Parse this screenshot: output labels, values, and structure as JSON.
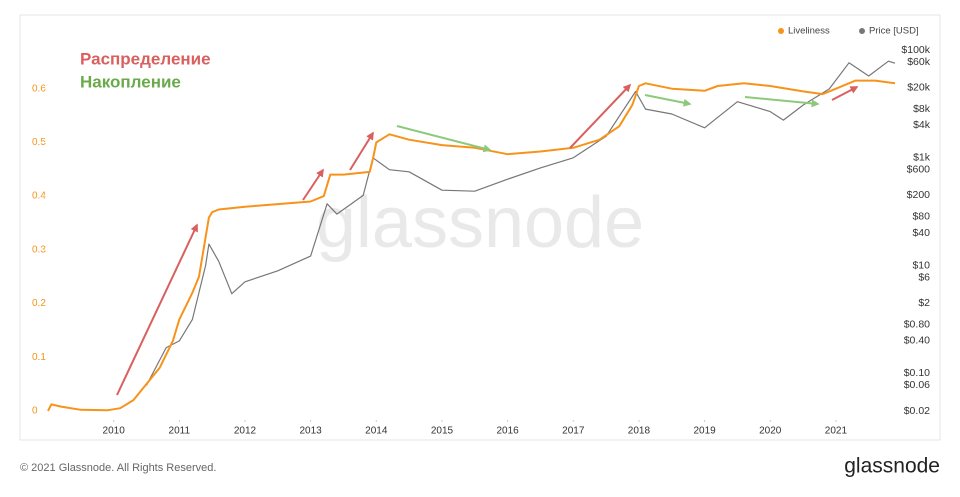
{
  "chart_data": {
    "type": "line",
    "legend": "top-right",
    "annotations": [
      {
        "text": "Распределение",
        "color": "#d9605f"
      },
      {
        "text": "Накопление",
        "color": "#6aaa4b"
      }
    ],
    "watermark": "glassnode",
    "footer": "© 2021 Glassnode. All Rights Reserved.",
    "logo": "glassnode",
    "xlim": [
      2009.0,
      2021.9
    ],
    "xticks": [
      2010,
      2011,
      2012,
      2013,
      2014,
      2015,
      2016,
      2017,
      2018,
      2019,
      2020,
      2021
    ],
    "ylim": [
      -0.017,
      0.7
    ],
    "yticks": [
      0,
      0.1,
      0.2,
      0.3,
      0.4,
      0.5,
      0.6
    ],
    "y2lim": [
      0.0136,
      190000
    ],
    "y2log": true,
    "y2ticks": [
      {
        "value": 100000,
        "label": "$100k"
      },
      {
        "value": 60000,
        "label": "$60k"
      },
      {
        "value": 20000,
        "label": "$20k"
      },
      {
        "value": 8000,
        "label": "$8k"
      },
      {
        "value": 4000,
        "label": "$4k"
      },
      {
        "value": 1000,
        "label": "$1k"
      },
      {
        "value": 600,
        "label": "$600"
      },
      {
        "value": 200,
        "label": "$200"
      },
      {
        "value": 80,
        "label": "$80"
      },
      {
        "value": 40,
        "label": "$40"
      },
      {
        "value": 10,
        "label": "$10"
      },
      {
        "value": 6,
        "label": "$6"
      },
      {
        "value": 2,
        "label": "$2"
      },
      {
        "value": 0.8,
        "label": "$0.80"
      },
      {
        "value": 0.4,
        "label": "$0.40"
      },
      {
        "value": 0.1,
        "label": "$0.10"
      },
      {
        "value": 0.06,
        "label": "$0.06"
      },
      {
        "value": 0.02,
        "label": "$0.02"
      }
    ],
    "series": [
      {
        "name": "Liveliness",
        "color": "#f7931a",
        "axis": "y",
        "x": [
          2009.0,
          2009.05,
          2009.2,
          2009.5,
          2009.9,
          2010.1,
          2010.3,
          2010.5,
          2010.7,
          2010.9,
          2011.0,
          2011.2,
          2011.3,
          2011.45,
          2011.5,
          2011.6,
          2012.0,
          2012.5,
          2013.0,
          2013.2,
          2013.3,
          2013.5,
          2013.9,
          2013.95,
          2014.0,
          2014.2,
          2014.5,
          2015.0,
          2015.5,
          2016.0,
          2016.5,
          2017.0,
          2017.4,
          2017.7,
          2017.9,
          2018.0,
          2018.1,
          2018.5,
          2019.0,
          2019.2,
          2019.6,
          2020.0,
          2020.5,
          2020.8,
          2021.0,
          2021.3,
          2021.6,
          2021.9
        ],
        "values": [
          0.0,
          0.012,
          0.008,
          0.002,
          0.001,
          0.005,
          0.02,
          0.05,
          0.08,
          0.13,
          0.17,
          0.22,
          0.25,
          0.36,
          0.37,
          0.375,
          0.38,
          0.385,
          0.39,
          0.4,
          0.44,
          0.44,
          0.445,
          0.47,
          0.5,
          0.515,
          0.505,
          0.495,
          0.49,
          0.478,
          0.483,
          0.49,
          0.505,
          0.53,
          0.57,
          0.605,
          0.61,
          0.6,
          0.596,
          0.605,
          0.61,
          0.605,
          0.595,
          0.59,
          0.6,
          0.615,
          0.615,
          0.61
        ]
      },
      {
        "name": "Price [USD]",
        "color": "#777777",
        "axis": "y2",
        "x": [
          2010.5,
          2010.8,
          2011.0,
          2011.2,
          2011.4,
          2011.45,
          2011.6,
          2011.8,
          2012.0,
          2012.5,
          2013.0,
          2013.25,
          2013.4,
          2013.8,
          2013.95,
          2014.2,
          2014.5,
          2015.0,
          2015.5,
          2016.0,
          2016.5,
          2017.0,
          2017.5,
          2017.95,
          2018.1,
          2018.5,
          2019.0,
          2019.5,
          2020.0,
          2020.2,
          2020.5,
          2020.9,
          2021.2,
          2021.5,
          2021.8,
          2021.9
        ],
        "values": [
          0.06,
          0.3,
          0.4,
          1,
          10,
          25,
          12,
          3,
          5,
          8,
          15,
          140,
          90,
          200,
          1000,
          600,
          550,
          250,
          240,
          400,
          650,
          1000,
          2500,
          17000,
          8000,
          6500,
          3600,
          11000,
          7200,
          5000,
          9500,
          19000,
          58000,
          33000,
          62000,
          57000
        ]
      }
    ]
  }
}
